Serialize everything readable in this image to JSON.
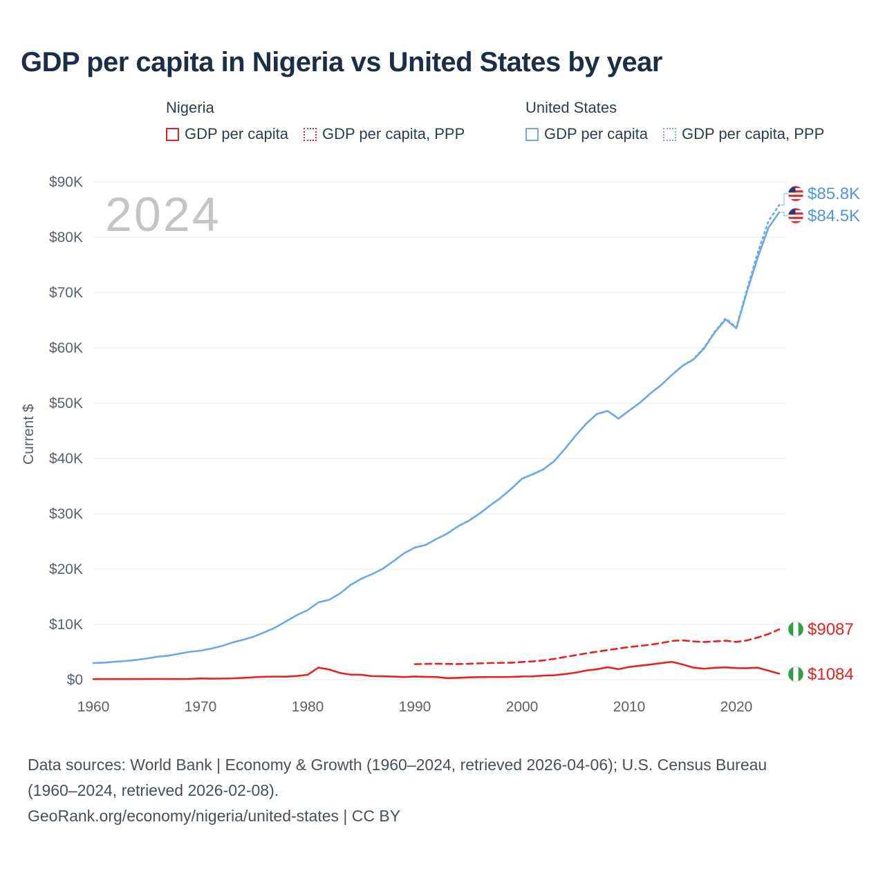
{
  "title": "GDP per capita in Nigeria vs United States by year",
  "watermark": "2024",
  "legend": {
    "groups": [
      {
        "name": "Nigeria",
        "items": [
          {
            "label": "GDP per capita",
            "style": "solid",
            "color": "#e8201e"
          },
          {
            "label": "GDP per capita, PPP",
            "style": "dotted",
            "color": "#e8201e"
          }
        ]
      },
      {
        "name": "United States",
        "items": [
          {
            "label": "GDP per capita",
            "style": "solid",
            "color": "#6aa9e6"
          },
          {
            "label": "GDP per capita, PPP",
            "style": "dotted",
            "color": "#6aa9e6"
          }
        ]
      }
    ]
  },
  "footer": {
    "line1": "Data sources: World Bank | Economy & Growth (1960–2024, retrieved 2026-04-06); U.S. Census Bureau",
    "line2": "(1960–2024, retrieved 2026-02-08).",
    "line3": "GeoRank.org/economy/nigeria/united-states | CC BY"
  },
  "chart_data": {
    "type": "line",
    "title": "GDP per capita in Nigeria vs United States by year",
    "xlabel": "",
    "ylabel": "Current $",
    "xlim": [
      1960,
      2025
    ],
    "ylim": [
      0,
      90000
    ],
    "x_ticks": [
      1960,
      1970,
      1980,
      1990,
      2000,
      2010,
      2020
    ],
    "y_ticks": [
      "$0",
      "$10K",
      "$20K",
      "$30K",
      "$40K",
      "$50K",
      "$60K",
      "$70K",
      "$80K",
      "$90K"
    ],
    "grid": "horizontal",
    "colors": {
      "nigeria": "#e8201e",
      "united_states": "#6aa9e6",
      "grid": "#ececec",
      "watermark": "#c4c4c4"
    },
    "series": [
      {
        "name": "United States — GDP per capita",
        "color": "#6aa9e6",
        "dash": "solid",
        "start_year": 1960,
        "values": [
          3007,
          3067,
          3244,
          3375,
          3574,
          3828,
          4146,
          4336,
          4696,
          5032,
          5234,
          5609,
          6094,
          6726,
          7226,
          7801,
          8592,
          9453,
          10565,
          11674,
          12575,
          13976,
          14434,
          15544,
          17121,
          18237,
          19071,
          20039,
          21417,
          22857,
          23889,
          24342,
          25419,
          26387,
          27695,
          28691,
          29968,
          31459,
          32854,
          34515,
          36330,
          37134,
          38023,
          39496,
          41713,
          44115,
          46299,
          48050,
          48570,
          47195,
          48651,
          50066,
          51784,
          53291,
          55124,
          56763,
          57867,
          59908,
          62823,
          65120,
          63528,
          70219,
          76330,
          81695,
          84500
        ],
        "end_label": "$84.5K"
      },
      {
        "name": "United States — GDP per capita, PPP",
        "color": "#6aa9e6",
        "dash": "dotted",
        "start_year": 1990,
        "values": [
          23889,
          24342,
          25419,
          26387,
          27695,
          28691,
          29968,
          31459,
          32854,
          34515,
          36330,
          37134,
          38023,
          39496,
          41713,
          44115,
          46299,
          48050,
          48570,
          47195,
          48651,
          50066,
          51784,
          53291,
          55124,
          56800,
          57950,
          60050,
          62950,
          65300,
          63700,
          70600,
          77200,
          82900,
          85810
        ],
        "end_label": "$85.8K"
      },
      {
        "name": "Nigeria — GDP per capita, PPP",
        "color": "#e8201e",
        "dash": "dashed",
        "start_year": 1990,
        "values": [
          2800,
          2850,
          2880,
          2850,
          2820,
          2870,
          2950,
          3000,
          3040,
          3060,
          3200,
          3300,
          3480,
          3750,
          4100,
          4420,
          4750,
          5050,
          5350,
          5620,
          5900,
          6100,
          6320,
          6620,
          7000,
          7100,
          6920,
          6800,
          6920,
          7040,
          6820,
          7100,
          7620,
          8250,
          9087
        ],
        "end_label": "$9087"
      },
      {
        "name": "Nigeria — GDP per capita",
        "color": "#e8201e",
        "dash": "solid",
        "start_year": 1960,
        "values": [
          93,
          96,
          101,
          104,
          110,
          118,
          126,
          111,
          108,
          125,
          224,
          183,
          202,
          235,
          324,
          437,
          525,
          546,
          543,
          662,
          874,
          2180,
          1844,
          1222,
          903,
          882,
          640,
          599,
          549,
          472,
          568,
          503,
          478,
          270,
          321,
          408,
          461,
          480,
          468,
          497,
          567,
          590,
          741,
          795,
          1007,
          1268,
          1656,
          1883,
          2242,
          1891,
          2292,
          2520,
          2747,
          2997,
          3222,
          2730,
          2176,
          1969,
          2153,
          2230,
          2083,
          2066,
          2163,
          1621,
          1084
        ],
        "end_label": "$1084"
      }
    ],
    "end_labels": [
      {
        "text": "$85.8K",
        "flag": "us",
        "color": "#4f97dd",
        "series_index": 1
      },
      {
        "text": "$84.5K",
        "flag": "us",
        "color": "#4f97dd",
        "series_index": 0
      },
      {
        "text": "$9087",
        "flag": "ng",
        "color": "#e8201e",
        "series_index": 2
      },
      {
        "text": "$1084",
        "flag": "ng",
        "color": "#e8201e",
        "series_index": 3
      }
    ]
  }
}
